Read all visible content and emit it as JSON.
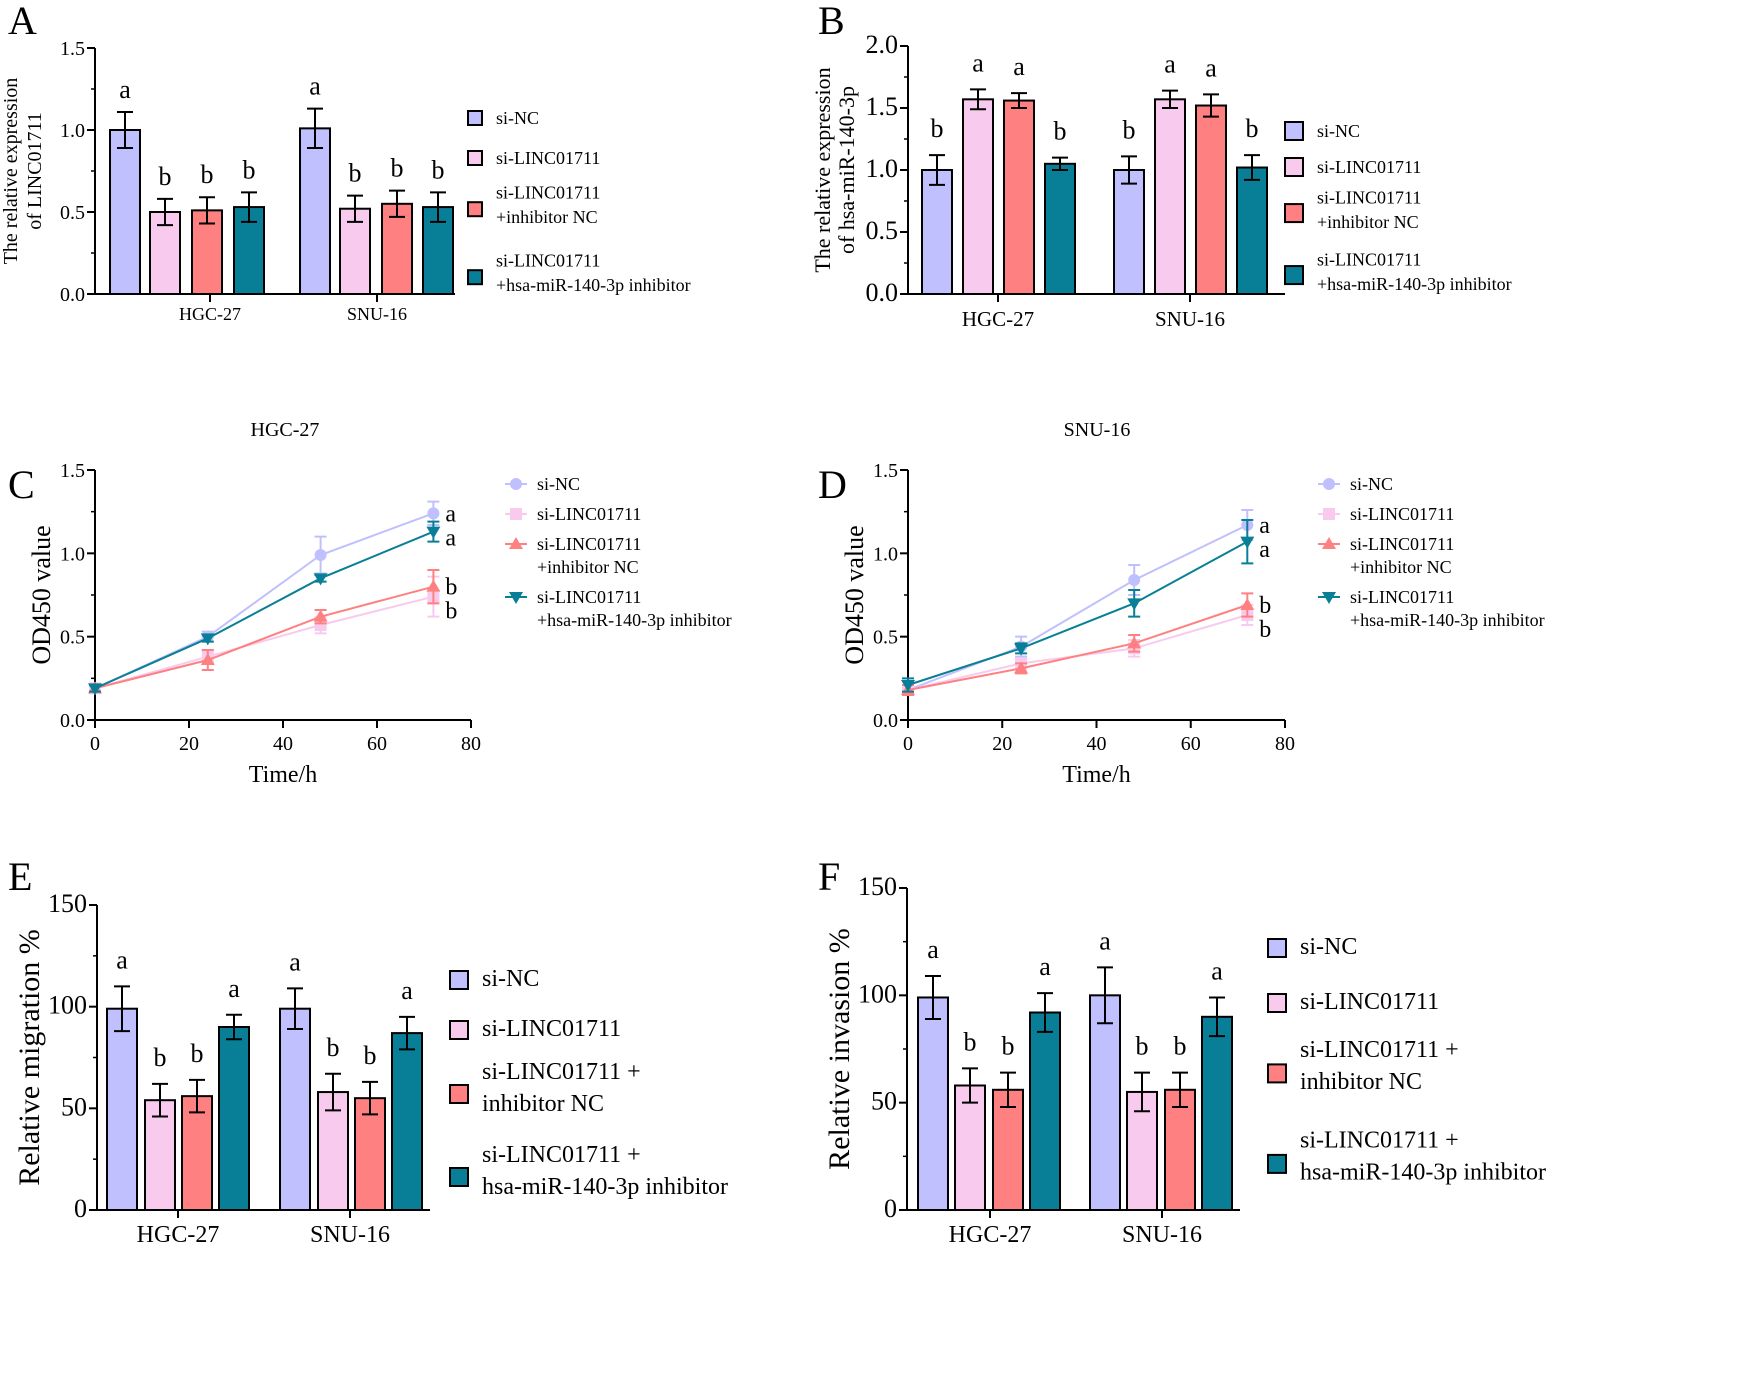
{
  "colors": {
    "si-NC": "#c0c0ff",
    "si-LINC01711": "#f8cbee",
    "si-LINC01711+inhibitor NC": "#ff8080",
    "si-LINC01711+hsa-miR-140-3p inhibitor": "#087f96"
  },
  "chart_data": [
    {
      "panel": "A",
      "type": "bar",
      "ylabel": [
        "The relative expression",
        "of LINC01711"
      ],
      "ylim": [
        0,
        1.5
      ],
      "yticks": [
        "0.0",
        "0.5",
        "1.0",
        "1.5"
      ],
      "categories": [
        "HGC-27",
        "SNU-16"
      ],
      "legend": [
        [
          "si-NC"
        ],
        [
          "si-LINC01711"
        ],
        [
          "si-LINC01711",
          "+inhibitor NC"
        ],
        [
          "si-LINC01711",
          "+hsa-miR-140-3p inhibitor"
        ]
      ],
      "series": [
        {
          "name": "si-NC",
          "values": [
            1.0,
            1.01
          ],
          "errors": [
            0.11,
            0.12
          ],
          "labels": [
            "a",
            "a"
          ]
        },
        {
          "name": "si-LINC01711",
          "values": [
            0.5,
            0.52
          ],
          "errors": [
            0.08,
            0.08
          ],
          "labels": [
            "b",
            "b"
          ]
        },
        {
          "name": "si-LINC01711+inhibitor NC",
          "values": [
            0.51,
            0.55
          ],
          "errors": [
            0.08,
            0.08
          ],
          "labels": [
            "b",
            "b"
          ]
        },
        {
          "name": "si-LINC01711+hsa-miR-140-3p inhibitor",
          "values": [
            0.53,
            0.53
          ],
          "errors": [
            0.09,
            0.09
          ],
          "labels": [
            "b",
            "b"
          ]
        }
      ]
    },
    {
      "panel": "B",
      "type": "bar",
      "ylabel": [
        "The relative expression",
        "of hsa-miR-140-3p"
      ],
      "ylim": [
        0,
        2.0
      ],
      "yticks": [
        "0.0",
        "0.5",
        "1.0",
        "1.5",
        "2.0"
      ],
      "categories": [
        "HGC-27",
        "SNU-16"
      ],
      "legend": [
        [
          "si-NC"
        ],
        [
          "si-LINC01711"
        ],
        [
          "si-LINC01711",
          "+inhibitor NC"
        ],
        [
          "si-LINC01711",
          "+hsa-miR-140-3p inhibitor"
        ]
      ],
      "series": [
        {
          "name": "si-NC",
          "values": [
            1.0,
            1.0
          ],
          "errors": [
            0.12,
            0.11
          ],
          "labels": [
            "b",
            "b"
          ]
        },
        {
          "name": "si-LINC01711",
          "values": [
            1.57,
            1.57
          ],
          "errors": [
            0.08,
            0.07
          ],
          "labels": [
            "a",
            "a"
          ]
        },
        {
          "name": "si-LINC01711+inhibitor NC",
          "values": [
            1.56,
            1.52
          ],
          "errors": [
            0.06,
            0.09
          ],
          "labels": [
            "a",
            "a"
          ]
        },
        {
          "name": "si-LINC01711+hsa-miR-140-3p inhibitor",
          "values": [
            1.05,
            1.02
          ],
          "errors": [
            0.05,
            0.1
          ],
          "labels": [
            "b",
            "b"
          ]
        }
      ]
    },
    {
      "panel": "C",
      "type": "line",
      "title": "HGC-27",
      "xlabel": "Time/h",
      "ylabel": "OD450 value",
      "xlim": [
        0,
        80
      ],
      "ylim": [
        0,
        1.5
      ],
      "xticks": [
        "0",
        "20",
        "40",
        "60",
        "80"
      ],
      "yticks": [
        "0.0",
        "0.5",
        "1.0",
        "1.5"
      ],
      "x": [
        0,
        24,
        48,
        72
      ],
      "legend": [
        [
          "si-NC"
        ],
        [
          "si-LINC01711"
        ],
        [
          "si-LINC01711",
          "+inhibitor NC"
        ],
        [
          "si-LINC01711",
          "+hsa-miR-140-3p inhibitor"
        ]
      ],
      "series": [
        {
          "name": "si-NC",
          "marker": "circle",
          "values": [
            0.19,
            0.5,
            0.99,
            1.24
          ],
          "errors": [
            0.02,
            0.03,
            0.11,
            0.07
          ],
          "label": "a"
        },
        {
          "name": "si-LINC01711",
          "marker": "square",
          "values": [
            0.19,
            0.38,
            0.57,
            0.74
          ],
          "errors": [
            0.02,
            0.04,
            0.05,
            0.12
          ],
          "label": "b"
        },
        {
          "name": "si-LINC01711+inhibitor NC",
          "marker": "triangle-up",
          "values": [
            0.19,
            0.36,
            0.62,
            0.8
          ],
          "errors": [
            0.02,
            0.06,
            0.04,
            0.1
          ],
          "label": "b"
        },
        {
          "name": "si-LINC01711+hsa-miR-140-3p inhibitor",
          "marker": "triangle-down",
          "values": [
            0.19,
            0.49,
            0.85,
            1.13
          ],
          "errors": [
            0.02,
            0.02,
            0.02,
            0.06
          ],
          "label": "a"
        }
      ]
    },
    {
      "panel": "D",
      "type": "line",
      "title": "SNU-16",
      "xlabel": "Time/h",
      "ylabel": "OD450 value",
      "xlim": [
        0,
        80
      ],
      "ylim": [
        0,
        1.5
      ],
      "xticks": [
        "0",
        "20",
        "40",
        "60",
        "80"
      ],
      "yticks": [
        "0.0",
        "0.5",
        "1.0",
        "1.5"
      ],
      "x": [
        0,
        24,
        48,
        72
      ],
      "legend": [
        [
          "si-NC"
        ],
        [
          "si-LINC01711"
        ],
        [
          "si-LINC01711",
          "+inhibitor NC"
        ],
        [
          "si-LINC01711",
          "+hsa-miR-140-3p inhibitor"
        ]
      ],
      "series": [
        {
          "name": "si-NC",
          "marker": "circle",
          "values": [
            0.18,
            0.44,
            0.84,
            1.17
          ],
          "errors": [
            0.03,
            0.06,
            0.09,
            0.09
          ],
          "label": "a"
        },
        {
          "name": "si-LINC01711",
          "marker": "square",
          "values": [
            0.18,
            0.34,
            0.43,
            0.63
          ],
          "errors": [
            0.03,
            0.03,
            0.05,
            0.06
          ],
          "label": "b"
        },
        {
          "name": "si-LINC01711+inhibitor NC",
          "marker": "triangle-up",
          "values": [
            0.18,
            0.31,
            0.46,
            0.69
          ],
          "errors": [
            0.03,
            0.03,
            0.05,
            0.07
          ],
          "label": "b"
        },
        {
          "name": "si-LINC01711+hsa-miR-140-3p inhibitor",
          "marker": "triangle-down",
          "values": [
            0.21,
            0.43,
            0.7,
            1.07
          ],
          "errors": [
            0.04,
            0.03,
            0.08,
            0.13
          ],
          "label": "a"
        }
      ]
    },
    {
      "panel": "E",
      "type": "bar",
      "ylabel": [
        "Relative migration %"
      ],
      "ylim": [
        0,
        150
      ],
      "yticks": [
        "0",
        "50",
        "100",
        "150"
      ],
      "categories": [
        "HGC-27",
        "SNU-16"
      ],
      "legend": [
        [
          "si-NC"
        ],
        [
          "si-LINC01711"
        ],
        [
          "si-LINC01711 +",
          "inhibitor NC"
        ],
        [
          "si-LINC01711 +",
          "hsa-miR-140-3p inhibitor"
        ]
      ],
      "series": [
        {
          "name": "si-NC",
          "values": [
            99,
            99
          ],
          "errors": [
            11,
            10
          ],
          "labels": [
            "a",
            "a"
          ]
        },
        {
          "name": "si-LINC01711",
          "values": [
            54,
            58
          ],
          "errors": [
            8,
            9
          ],
          "labels": [
            "b",
            "b"
          ]
        },
        {
          "name": "si-LINC01711+inhibitor NC",
          "values": [
            56,
            55
          ],
          "errors": [
            8,
            8
          ],
          "labels": [
            "b",
            "b"
          ]
        },
        {
          "name": "si-LINC01711+hsa-miR-140-3p inhibitor",
          "values": [
            90,
            87
          ],
          "errors": [
            6,
            8
          ],
          "labels": [
            "a",
            "a"
          ]
        }
      ]
    },
    {
      "panel": "F",
      "type": "bar",
      "ylabel": [
        "Relative invasion %"
      ],
      "ylim": [
        0,
        150
      ],
      "yticks": [
        "0",
        "50",
        "100",
        "150"
      ],
      "categories": [
        "HGC-27",
        "SNU-16"
      ],
      "legend": [
        [
          "si-NC"
        ],
        [
          "si-LINC01711"
        ],
        [
          "si-LINC01711 +",
          "inhibitor NC"
        ],
        [
          "si-LINC01711 +",
          "hsa-miR-140-3p inhibitor"
        ]
      ],
      "series": [
        {
          "name": "si-NC",
          "values": [
            99,
            100
          ],
          "errors": [
            10,
            13
          ],
          "labels": [
            "a",
            "a"
          ]
        },
        {
          "name": "si-LINC01711",
          "values": [
            58,
            55
          ],
          "errors": [
            8,
            9
          ],
          "labels": [
            "b",
            "b"
          ]
        },
        {
          "name": "si-LINC01711+inhibitor NC",
          "values": [
            56,
            56
          ],
          "errors": [
            8,
            8
          ],
          "labels": [
            "b",
            "b"
          ]
        },
        {
          "name": "si-LINC01711+hsa-miR-140-3p inhibitor",
          "values": [
            92,
            90
          ],
          "errors": [
            9,
            9
          ],
          "labels": [
            "a",
            "a"
          ]
        }
      ]
    }
  ]
}
